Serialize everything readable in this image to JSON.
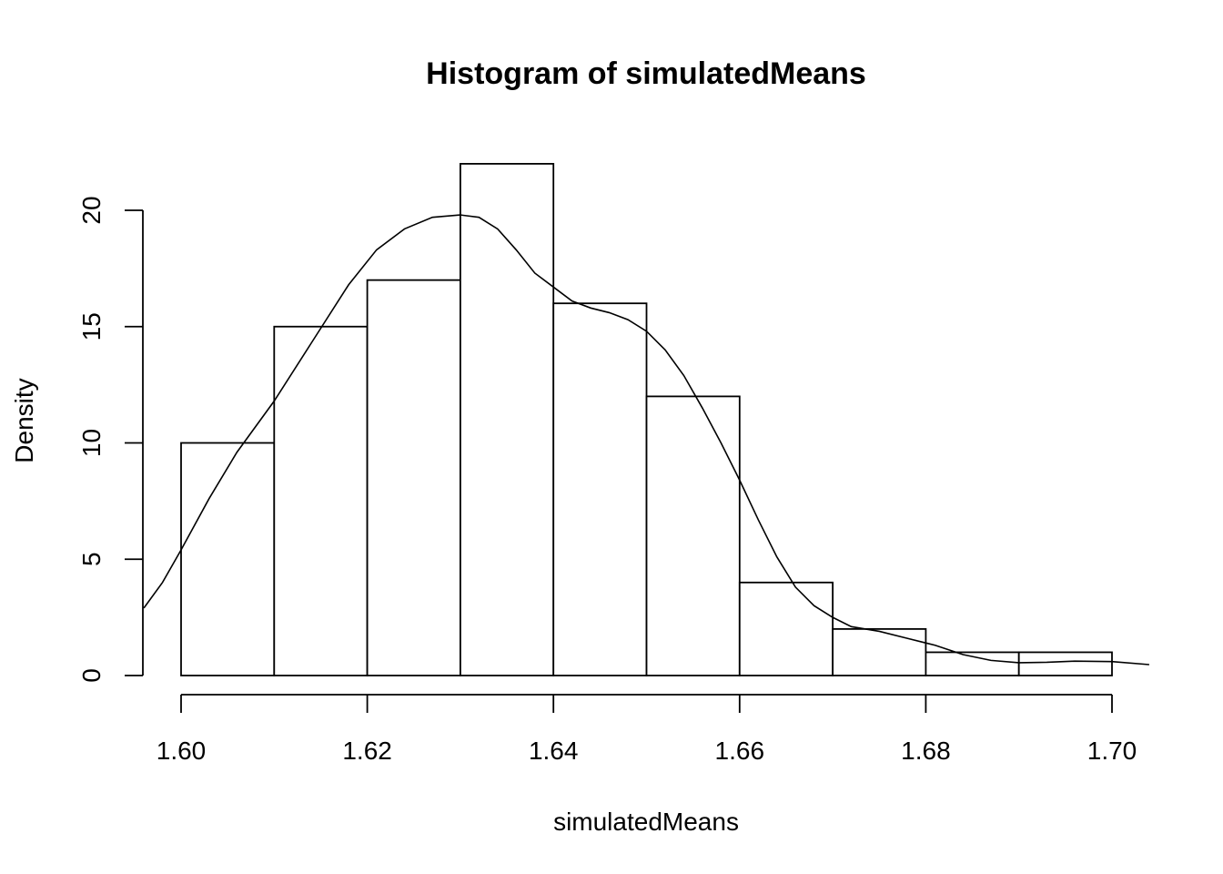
{
  "chart_data": {
    "type": "bar",
    "title": "Histogram of simulatedMeans",
    "xlabel": "simulatedMeans",
    "ylabel": "Density",
    "bins": [
      {
        "start": 1.6,
        "end": 1.61,
        "density": 10
      },
      {
        "start": 1.61,
        "end": 1.62,
        "density": 15
      },
      {
        "start": 1.62,
        "end": 1.63,
        "density": 17
      },
      {
        "start": 1.63,
        "end": 1.64,
        "density": 22
      },
      {
        "start": 1.64,
        "end": 1.65,
        "density": 16
      },
      {
        "start": 1.65,
        "end": 1.66,
        "density": 12
      },
      {
        "start": 1.66,
        "end": 1.67,
        "density": 4
      },
      {
        "start": 1.67,
        "end": 1.68,
        "density": 2
      },
      {
        "start": 1.68,
        "end": 1.69,
        "density": 1
      },
      {
        "start": 1.69,
        "end": 1.7,
        "density": 1
      }
    ],
    "x_ticks": [
      1.6,
      1.62,
      1.64,
      1.66,
      1.68,
      1.7
    ],
    "x_tick_labels": [
      "1.60",
      "1.62",
      "1.64",
      "1.66",
      "1.68",
      "1.70"
    ],
    "y_ticks": [
      0,
      5,
      10,
      15,
      20
    ],
    "y_tick_labels": [
      "0",
      "5",
      "10",
      "15",
      "20"
    ],
    "xlim": [
      1.596,
      1.704
    ],
    "ylim": [
      0,
      22
    ],
    "grid": false,
    "density_curve": {
      "x": [
        1.596,
        1.598,
        1.6,
        1.603,
        1.606,
        1.61,
        1.614,
        1.618,
        1.621,
        1.624,
        1.627,
        1.63,
        1.632,
        1.634,
        1.636,
        1.638,
        1.64,
        1.642,
        1.644,
        1.646,
        1.648,
        1.65,
        1.652,
        1.654,
        1.656,
        1.658,
        1.66,
        1.662,
        1.664,
        1.666,
        1.668,
        1.67,
        1.672,
        1.675,
        1.678,
        1.681,
        1.684,
        1.687,
        1.69,
        1.693,
        1.696,
        1.7,
        1.704
      ],
      "y": [
        2.9,
        4.0,
        5.4,
        7.6,
        9.6,
        11.8,
        14.3,
        16.8,
        18.3,
        19.2,
        19.7,
        19.8,
        19.7,
        19.2,
        18.3,
        17.3,
        16.7,
        16.1,
        15.8,
        15.6,
        15.3,
        14.8,
        14.0,
        12.9,
        11.5,
        10.0,
        8.4,
        6.7,
        5.1,
        3.8,
        3.0,
        2.5,
        2.1,
        1.9,
        1.6,
        1.3,
        0.9,
        0.65,
        0.55,
        0.57,
        0.62,
        0.6,
        0.47
      ]
    }
  }
}
